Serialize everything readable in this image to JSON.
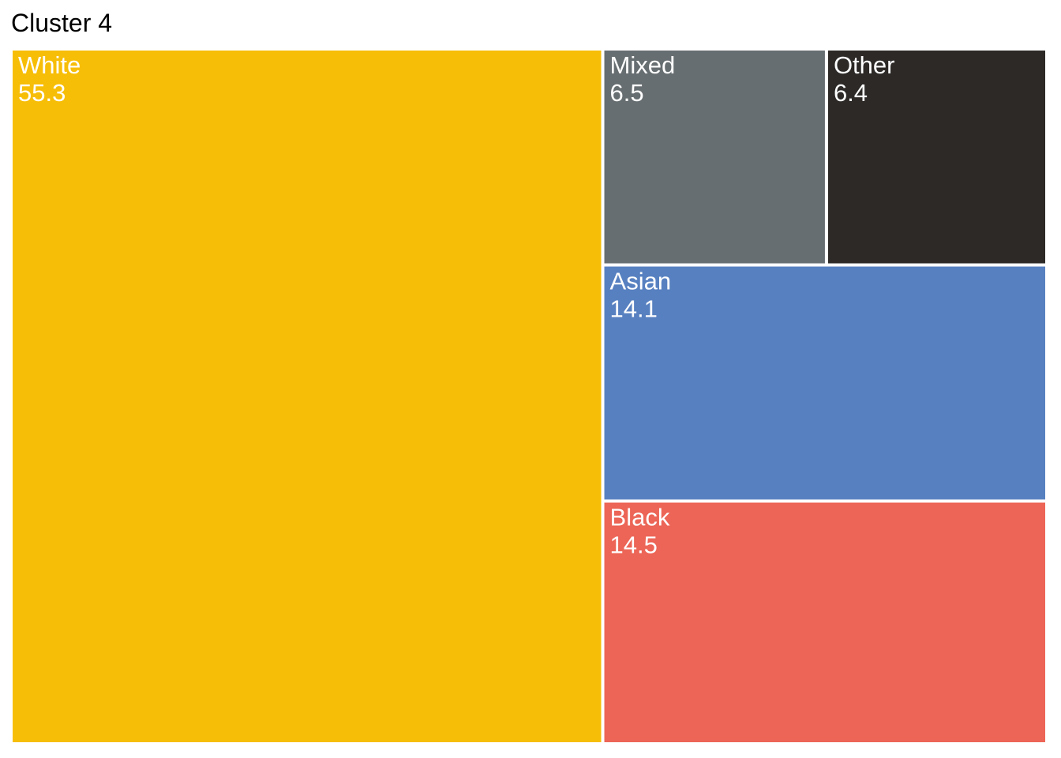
{
  "chart_data": {
    "type": "treemap",
    "title": "Cluster 4",
    "items": [
      {
        "label": "White",
        "value": 55.3,
        "value_text": "55.3",
        "color": "#F7BE08"
      },
      {
        "label": "Black",
        "value": 14.5,
        "value_text": "14.5",
        "color": "#EC6556"
      },
      {
        "label": "Asian",
        "value": 14.1,
        "value_text": "14.1",
        "color": "#5780C0"
      },
      {
        "label": "Mixed",
        "value": 6.5,
        "value_text": "6.5",
        "color": "#676E71"
      },
      {
        "label": "Other",
        "value": 6.4,
        "value_text": "6.4",
        "color": "#2C2927"
      }
    ]
  }
}
